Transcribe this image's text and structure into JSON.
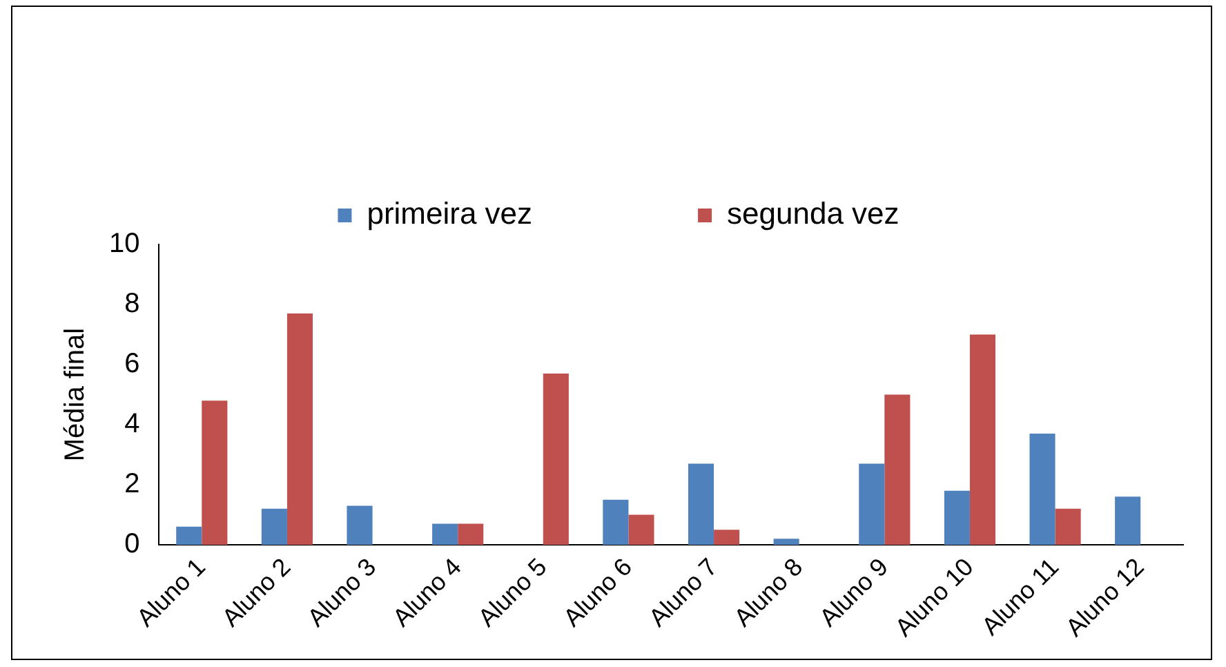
{
  "chart_data": {
    "type": "bar",
    "ylabel": "Média final",
    "categories": [
      "Aluno 1",
      "Aluno 2",
      "Aluno 3",
      "Aluno 4",
      "Aluno 5",
      "Aluno 6",
      "Aluno 7",
      "Aluno 8",
      "Aluno 9",
      "Aluno 10",
      "Aluno 11",
      "Aluno 12"
    ],
    "series": [
      {
        "name": "primeira vez",
        "color": "#4f81bd",
        "values": [
          0.6,
          1.2,
          1.3,
          0.7,
          0,
          1.5,
          2.7,
          0.2,
          2.7,
          1.8,
          3.7,
          1.6
        ]
      },
      {
        "name": "segunda vez",
        "color": "#c0504d",
        "values": [
          4.8,
          7.7,
          0,
          0.7,
          5.7,
          1.0,
          0.5,
          0,
          5.0,
          7.0,
          1.2,
          0
        ]
      }
    ],
    "ylim": [
      0,
      10
    ],
    "yticks": [
      0,
      2,
      4,
      6,
      8,
      10
    ],
    "grid": false,
    "legend": "top"
  }
}
